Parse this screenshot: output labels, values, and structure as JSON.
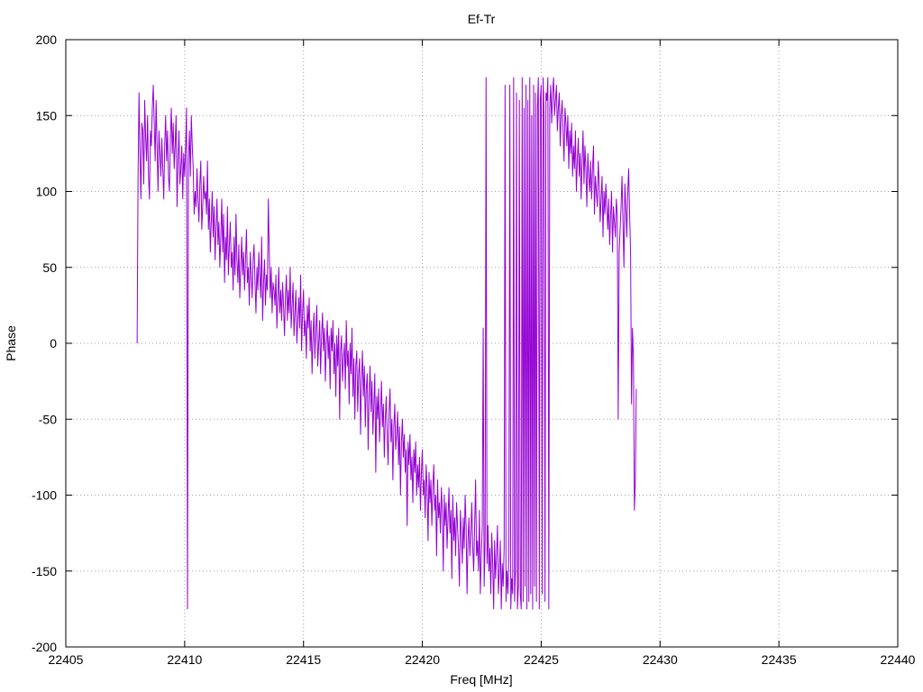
{
  "chart_data": {
    "type": "line",
    "title": "Ef-Tr",
    "xlabel": "Freq [MHz]",
    "ylabel": "Phase",
    "xlim": [
      22405,
      22440
    ],
    "ylim": [
      -200,
      200
    ],
    "xticks": [
      22405,
      22410,
      22415,
      22420,
      22425,
      22430,
      22435,
      22440
    ],
    "yticks": [
      -200,
      -150,
      -100,
      -50,
      0,
      50,
      100,
      150,
      200
    ],
    "grid": true,
    "legend": "none",
    "series": [
      {
        "name": "",
        "color": "#9400d3",
        "x_start": 22408.0,
        "x_step": 0.04,
        "values": [
          0,
          110,
          165,
          125,
          95,
          145,
          140,
          105,
          160,
          135,
          120,
          150,
          110,
          95,
          140,
          130,
          155,
          170,
          145,
          120,
          160,
          130,
          100,
          140,
          125,
          110,
          135,
          115,
          95,
          130,
          150,
          120,
          140,
          110,
          100,
          135,
          155,
          125,
          145,
          115,
          130,
          150,
          90,
          120,
          140,
          105,
          115,
          130,
          95,
          125,
          110,
          130,
          155,
          -175,
          120,
          140,
          110,
          150,
          130,
          115,
          85,
          100,
          90,
          115,
          95,
          80,
          105,
          120,
          75,
          90,
          110,
          95,
          100,
          85,
          120,
          75,
          95,
          60,
          80,
          100,
          70,
          90,
          55,
          75,
          95,
          65,
          80,
          50,
          70,
          95,
          60,
          85,
          40,
          70,
          55,
          90,
          45,
          65,
          80,
          50,
          60,
          35,
          70,
          45,
          85,
          55,
          40,
          65,
          30,
          50,
          70,
          45,
          60,
          35,
          55,
          75,
          40,
          50,
          25,
          60,
          45,
          30,
          55,
          65,
          40,
          20,
          50,
          35,
          60,
          45,
          30,
          70,
          15,
          40,
          55,
          25,
          45,
          35,
          95,
          60,
          30,
          50,
          20,
          40,
          35,
          25,
          45,
          10,
          30,
          50,
          20,
          35,
          15,
          40,
          25,
          5,
          30,
          45,
          15,
          35,
          20,
          50,
          10,
          25,
          40,
          5,
          20,
          35,
          0,
          15,
          30,
          10,
          45,
          -5,
          20,
          35,
          5,
          15,
          -10,
          25,
          10,
          30,
          -5,
          15,
          -20,
          5,
          20,
          -10,
          10,
          25,
          -15,
          0,
          15,
          -20,
          5,
          20,
          -5,
          10,
          -25,
          0,
          15,
          -10,
          5,
          -30,
          10,
          -5,
          15,
          -20,
          0,
          -35,
          5,
          -15,
          10,
          -50,
          -5,
          5,
          -25,
          -10,
          0,
          -30,
          15,
          -15,
          -5,
          -40,
          0,
          -20,
          10,
          -35,
          -10,
          -50,
          -15,
          -5,
          -45,
          -20,
          -10,
          -60,
          -25,
          -5,
          -35,
          -15,
          -55,
          -30,
          -20,
          -70,
          -35,
          -15,
          -45,
          -25,
          -60,
          -40,
          -20,
          -85,
          -35,
          -50,
          -30,
          -65,
          -45,
          -25,
          -55,
          -40,
          -75,
          -50,
          -35,
          -60,
          -80,
          -45,
          -30,
          -65,
          -50,
          -90,
          -55,
          -40,
          -70,
          -60,
          -45,
          -80,
          -55,
          -100,
          -65,
          -50,
          -75,
          -60,
          -85,
          -70,
          -120,
          -65,
          -80,
          -60,
          -90,
          -75,
          -105,
          -70,
          -85,
          -65,
          -100,
          -80,
          -95,
          -75,
          -110,
          -85,
          -70,
          -100,
          -90,
          -115,
          -80,
          -95,
          -130,
          -85,
          -105,
          -90,
          -120,
          -95,
          -80,
          -110,
          -100,
          -140,
          -90,
          -115,
          -105,
          -125,
          -95,
          -110,
          -150,
          -100,
          -120,
          -105,
          -135,
          -115,
          -95,
          -125,
          -110,
          -155,
          -100,
          -130,
          -115,
          -140,
          -105,
          -120,
          -135,
          -160,
          -110,
          -125,
          -145,
          -115,
          -135,
          -100,
          -120,
          -165,
          -130,
          -115,
          -140,
          -125,
          -105,
          -135,
          -150,
          -120,
          -90,
          -140,
          -130,
          -150,
          -110,
          -165,
          -140,
          -120,
          10,
          -160,
          -130,
          175,
          -145,
          -120,
          -150,
          -135,
          -165,
          -125,
          -145,
          -175,
          -130,
          -155,
          -140,
          -120,
          -165,
          -150,
          -130,
          -175,
          -145,
          -160,
          -135,
          170,
          -170,
          -150,
          -165,
          -140,
          170,
          -175,
          -155,
          -165,
          175,
          -170,
          -150,
          165,
          -175,
          -160,
          160,
          -165,
          -175,
          175,
          -170,
          155,
          -160,
          170,
          -175,
          160,
          -170,
          175,
          -165,
          150,
          -175,
          170,
          -160,
          165,
          -170,
          155,
          175,
          -175,
          160,
          170,
          -165,
          175,
          150,
          -170,
          165,
          160,
          175,
          -175,
          155,
          170,
          145,
          165,
          175,
          150,
          160,
          170,
          140,
          155,
          165,
          130,
          150,
          160,
          140,
          120,
          155,
          145,
          130,
          150,
          115,
          140,
          125,
          145,
          110,
          130,
          115,
          140,
          100,
          120,
          135,
          110,
          125,
          95,
          120,
          140,
          105,
          130,
          115,
          90,
          125,
          110,
          100,
          120,
          95,
          115,
          130,
          85,
          110,
          100,
          90,
          120,
          105,
          80,
          95,
          110,
          70,
          100,
          85,
          105,
          90,
          75,
          95,
          65,
          85,
          100,
          60,
          90,
          80,
          70,
          95,
          85,
          -50,
          60,
          75,
          90,
          110,
          80,
          50,
          105,
          90,
          70,
          100,
          115,
          85,
          60,
          -40,
          10,
          -10,
          -110,
          -90,
          -30
        ]
      }
    ]
  }
}
